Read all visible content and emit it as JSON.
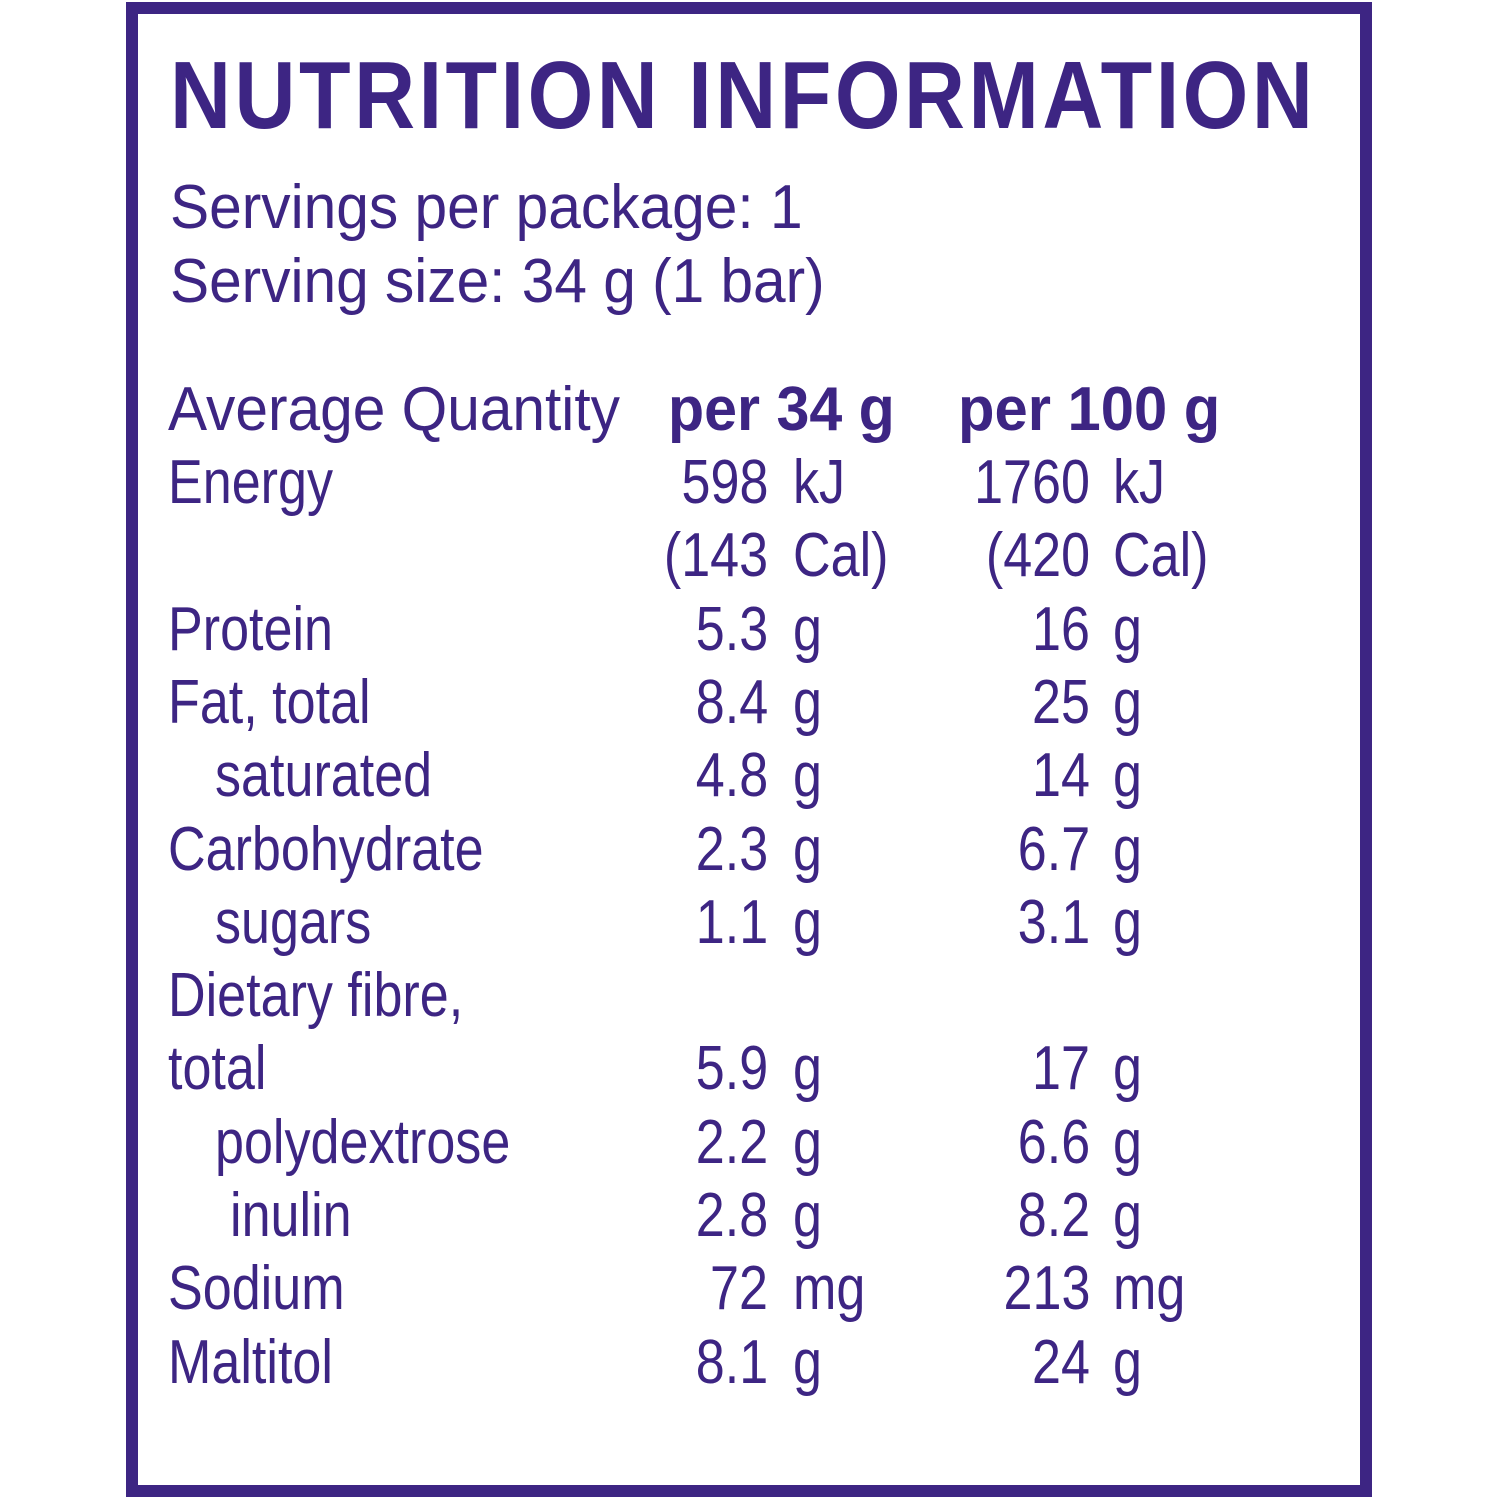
{
  "colors": {
    "text": "#3d2583",
    "border": "#3d2583",
    "background": "#ffffff"
  },
  "title": "NUTRITION INFORMATION",
  "servings_per_package": "Servings per package: 1",
  "serving_size": "Serving size: 34 g (1 bar)",
  "table": {
    "headers": [
      "Average Quantity",
      "per 34 g",
      "per 100 g"
    ],
    "rows": [
      {
        "label": "Energy",
        "v1": "598",
        "u1": "kJ",
        "v2": "1760",
        "u2": "kJ"
      },
      {
        "label": "",
        "v1": "(143",
        "u1": "Cal)",
        "v2": "(420",
        "u2": "Cal)"
      },
      {
        "label": "Protein",
        "v1": "5.3",
        "u1": "g",
        "v2": "16",
        "u2": "g"
      },
      {
        "label": "Fat, total",
        "v1": "8.4",
        "u1": "g",
        "v2": "25",
        "u2": "g"
      },
      {
        "label": "saturated",
        "v1": "4.8",
        "u1": "g",
        "v2": "14",
        "u2": "g"
      },
      {
        "label": "Carbohydrate",
        "v1": "2.3",
        "u1": "g",
        "v2": "6.7",
        "u2": "g"
      },
      {
        "label": "sugars",
        "v1": "1.1",
        "u1": "g",
        "v2": "3.1",
        "u2": "g"
      },
      {
        "label": "Dietary fibre,",
        "v1": "",
        "u1": "",
        "v2": "",
        "u2": ""
      },
      {
        "label": "total",
        "v1": "5.9",
        "u1": "g",
        "v2": "17",
        "u2": "g"
      },
      {
        "label": "polydextrose",
        "v1": "2.2",
        "u1": "g",
        "v2": "6.6",
        "u2": "g"
      },
      {
        "label": "inulin",
        "v1": "2.8",
        "u1": "g",
        "v2": "8.2",
        "u2": "g"
      },
      {
        "label": "Sodium",
        "v1": "72",
        "u1": "mg",
        "v2": "213",
        "u2": "mg"
      },
      {
        "label": "Maltitol",
        "v1": "8.1",
        "u1": "g",
        "v2": "24",
        "u2": "g"
      }
    ]
  }
}
